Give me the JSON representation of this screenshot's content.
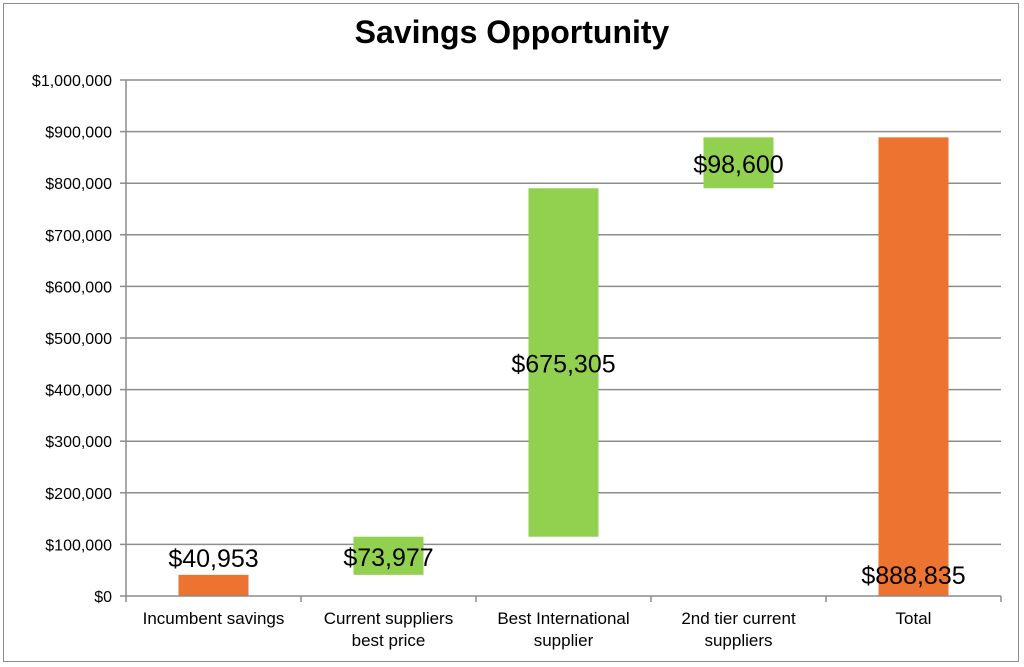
{
  "chart_data": {
    "type": "bar",
    "subtype": "waterfall",
    "title": "Savings Opportunity",
    "xlabel": "",
    "ylabel": "",
    "ylim": [
      0,
      1000000
    ],
    "yticks": [
      0,
      100000,
      200000,
      300000,
      400000,
      500000,
      600000,
      700000,
      800000,
      900000,
      1000000
    ],
    "ytick_labels": [
      "$0",
      "$100,000",
      "$200,000",
      "$300,000",
      "$400,000",
      "$500,000",
      "$600,000",
      "$700,000",
      "$800,000",
      "$900,000",
      "$1,000,000"
    ],
    "grid": true,
    "legend": "none",
    "categories": [
      [
        "Incumbent savings"
      ],
      [
        "Current suppliers",
        "best price"
      ],
      [
        "Best International",
        "supplier"
      ],
      [
        "2nd tier current",
        "suppliers"
      ],
      [
        "Total"
      ]
    ],
    "bars": [
      {
        "base": 0,
        "value": 40953,
        "label": "$40,953",
        "color": "#ED7331"
      },
      {
        "base": 40953,
        "value": 73977,
        "label": "$73,977",
        "color": "#92D050"
      },
      {
        "base": 114930,
        "value": 675305,
        "label": "$675,305",
        "color": "#92D050"
      },
      {
        "base": 790235,
        "value": 98600,
        "label": "$98,600",
        "color": "#92D050"
      },
      {
        "base": 0,
        "value": 888835,
        "label": "$888,835",
        "color": "#ED7331"
      }
    ]
  }
}
